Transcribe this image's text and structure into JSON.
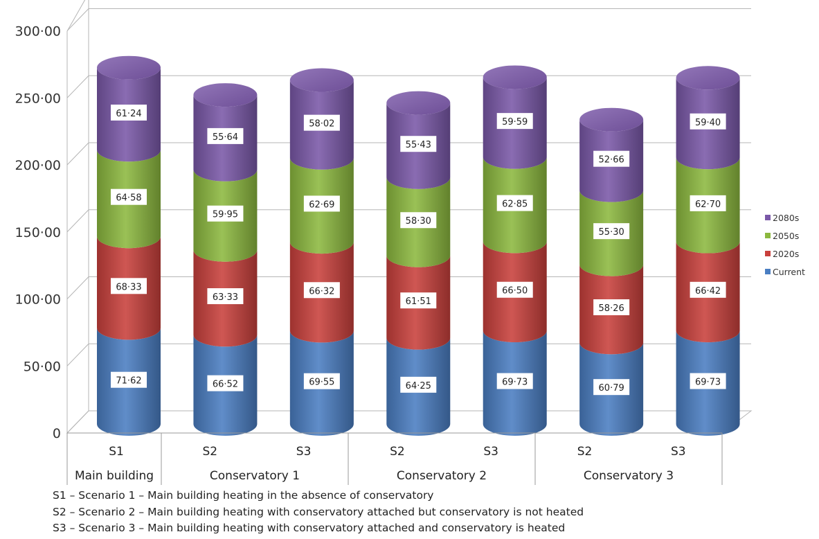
{
  "chart_data": {
    "type": "bar",
    "stacked": true,
    "categories": [
      "S1",
      "S2",
      "S3",
      "S2",
      "S3",
      "S2",
      "S3"
    ],
    "groups": [
      {
        "label": "Main building",
        "categories": [
          "S1"
        ]
      },
      {
        "label": "Conservatory 1",
        "categories": [
          "S2",
          "S3"
        ]
      },
      {
        "label": "Conservatory 2",
        "categories": [
          "S2",
          "S3"
        ]
      },
      {
        "label": "Conservatory 3",
        "categories": [
          "S2",
          "S3"
        ]
      }
    ],
    "series": [
      {
        "name": "Current",
        "color": "#4a7ec2",
        "values": [
          71.62,
          66.52,
          69.55,
          64.25,
          69.73,
          60.79,
          69.73
        ],
        "labels": [
          "71·62",
          "66·52",
          "69·55",
          "64·25",
          "69·73",
          "60·79",
          "69·73"
        ]
      },
      {
        "name": "2020s",
        "color": "#c9403c",
        "values": [
          68.33,
          63.33,
          66.32,
          61.51,
          66.5,
          58.26,
          66.42
        ],
        "labels": [
          "68·33",
          "63·33",
          "66·32",
          "61·51",
          "66·50",
          "58·26",
          "66·42"
        ]
      },
      {
        "name": "2050s",
        "color": "#8cb83f",
        "values": [
          64.58,
          59.95,
          62.69,
          58.3,
          62.85,
          55.3,
          62.7
        ],
        "labels": [
          "64·58",
          "59·95",
          "62·69",
          "58·30",
          "62·85",
          "55·30",
          "62·70"
        ]
      },
      {
        "name": "2080s",
        "color": "#7a58a8",
        "values": [
          61.24,
          55.64,
          58.02,
          55.43,
          59.59,
          52.66,
          59.4
        ],
        "labels": [
          "61·24",
          "55·64",
          "58·02",
          "55·43",
          "59·59",
          "52·66",
          "59·40"
        ]
      }
    ],
    "ylim": [
      0,
      300
    ],
    "yticks": [
      0,
      50,
      100,
      150,
      200,
      250,
      300
    ],
    "ytick_labels": [
      "0",
      "50·00",
      "100·00",
      "150·00",
      "200·00",
      "250·00",
      "300·00"
    ],
    "grid": true,
    "legend_position": "right",
    "legend_order": [
      "2080s",
      "2050s",
      "2020s",
      "Current"
    ]
  },
  "notes": [
    "S1 – Scenario 1 – Main building heating in the absence of conservatory",
    "S2 – Scenario 2 – Main building heating with conservatory attached but conservatory is not heated",
    "S3 – Scenario 3 – Main building heating with conservatory attached and conservatory is heated"
  ]
}
